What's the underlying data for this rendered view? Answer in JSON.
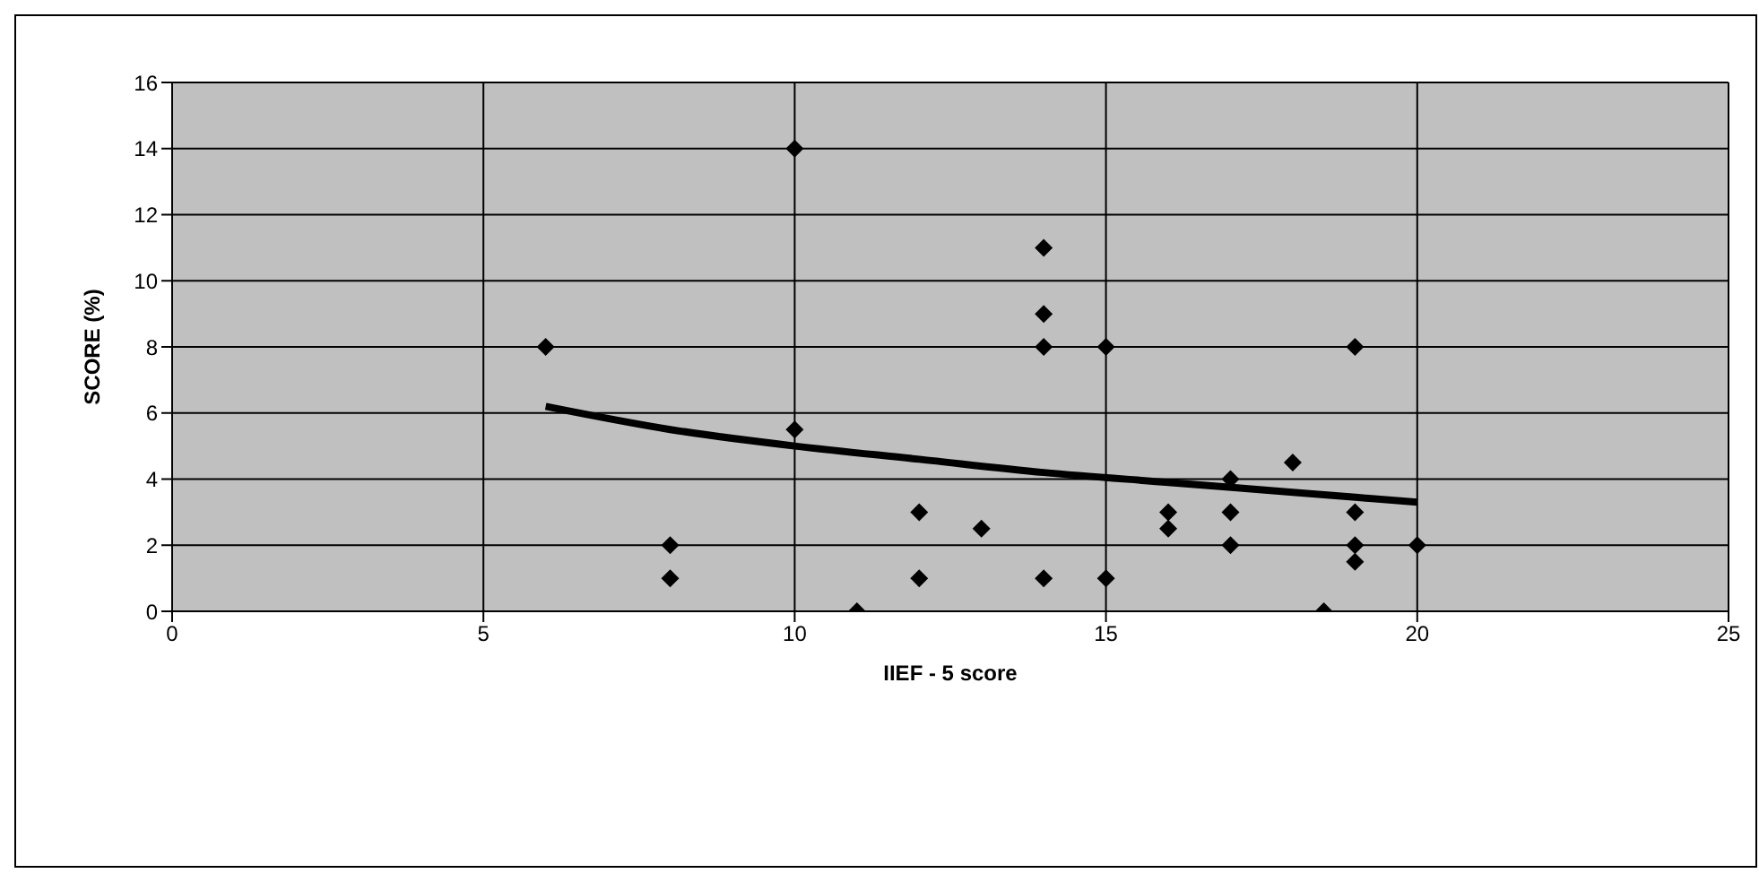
{
  "chart_data": {
    "type": "scatter",
    "xlabel": "IIEF - 5 score",
    "ylabel": "SCORE (%)",
    "xlim": [
      0,
      25
    ],
    "xticks": [
      0,
      5,
      10,
      15,
      20,
      25
    ],
    "ylim": [
      0,
      16
    ],
    "yticks": [
      0,
      2,
      4,
      6,
      8,
      10,
      12,
      14,
      16
    ],
    "grid": true,
    "series": [
      {
        "marker": "diamond",
        "color": "#000000",
        "x": [
          6,
          8,
          8,
          10,
          10,
          11,
          12,
          12,
          13,
          14,
          14,
          14,
          14,
          15,
          15,
          16,
          16,
          17,
          17,
          17,
          18,
          18.5,
          19,
          19,
          19,
          19,
          20
        ],
        "values": [
          8,
          2,
          1,
          14,
          5.5,
          0,
          3,
          1,
          2.5,
          11,
          9,
          8,
          1,
          8,
          1,
          3,
          2.5,
          4,
          3,
          2,
          4.5,
          0,
          8,
          3,
          2,
          1.5,
          2
        ]
      },
      {
        "type": "line",
        "color": "#000000",
        "x": [
          6,
          8,
          10,
          12,
          14,
          16,
          18,
          20
        ],
        "values": [
          6.2,
          5.5,
          5.0,
          4.6,
          4.2,
          3.9,
          3.6,
          3.3
        ]
      }
    ]
  }
}
